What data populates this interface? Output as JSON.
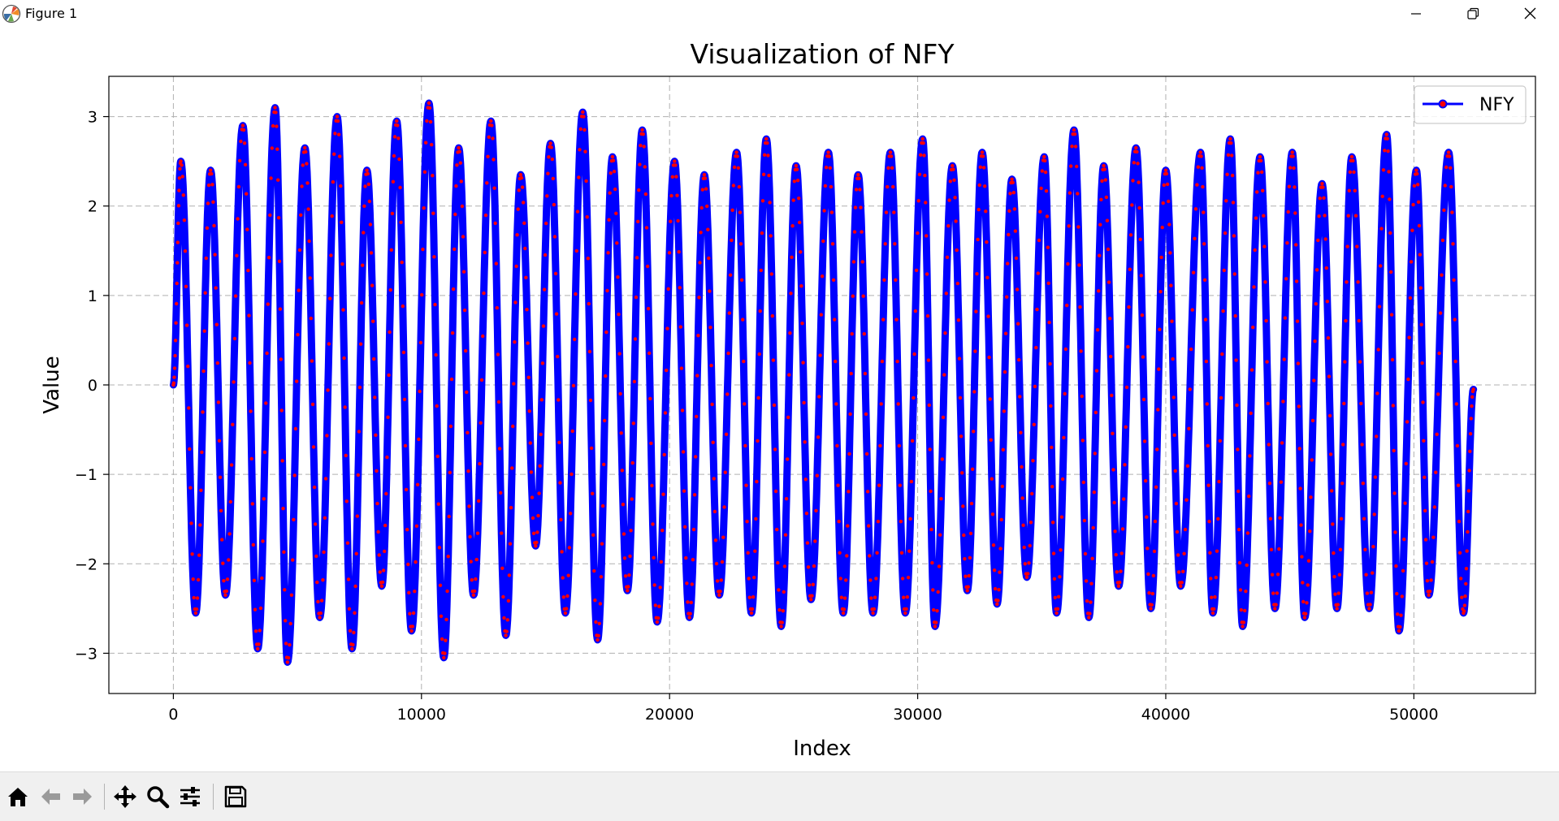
{
  "window": {
    "title": "Figure 1",
    "icon": "matplotlib-logo-icon",
    "controls": [
      "minimize-icon",
      "restore-icon",
      "close-icon"
    ]
  },
  "toolbar": {
    "buttons": [
      {
        "name": "home-button",
        "icon": "home-icon"
      },
      {
        "name": "back-button",
        "icon": "arrow-left-icon"
      },
      {
        "name": "forward-button",
        "icon": "arrow-right-icon"
      },
      {
        "name": "pan-button",
        "icon": "move-icon"
      },
      {
        "name": "zoom-button",
        "icon": "magnifier-icon"
      },
      {
        "name": "configure-subplots-button",
        "icon": "sliders-icon"
      },
      {
        "name": "save-button",
        "icon": "floppy-disk-icon"
      }
    ]
  },
  "chart_data": {
    "type": "line",
    "title": "Visualization of NFY",
    "xlabel": "Index",
    "ylabel": "Value",
    "xlim": [
      -2600,
      54900
    ],
    "ylim": [
      -3.45,
      3.45
    ],
    "xticks": [
      0,
      10000,
      20000,
      30000,
      40000,
      50000
    ],
    "yticks": [
      -3,
      -2,
      -1,
      0,
      1,
      2,
      3
    ],
    "grid": true,
    "legend_position": "top-right",
    "series": [
      {
        "name": "NFY",
        "line_color": "#0000ff",
        "marker_color": "#ff0000",
        "marker": "circle",
        "n_points": 52400,
        "x_range": [
          0,
          52400
        ],
        "peaks": [
          [
            300,
            2.5
          ],
          [
            1500,
            2.4
          ],
          [
            2800,
            2.9
          ],
          [
            4100,
            3.1
          ],
          [
            5300,
            2.65
          ],
          [
            6600,
            3.0
          ],
          [
            7800,
            2.4
          ],
          [
            9000,
            2.95
          ],
          [
            10300,
            3.15
          ],
          [
            11500,
            2.65
          ],
          [
            12800,
            2.95
          ],
          [
            14000,
            2.35
          ],
          [
            15200,
            2.7
          ],
          [
            16500,
            3.05
          ],
          [
            17700,
            2.55
          ],
          [
            18900,
            2.85
          ],
          [
            20200,
            2.5
          ],
          [
            21400,
            2.35
          ],
          [
            22700,
            2.6
          ],
          [
            23900,
            2.75
          ],
          [
            25100,
            2.45
          ],
          [
            26400,
            2.6
          ],
          [
            27600,
            2.35
          ],
          [
            28900,
            2.6
          ],
          [
            30200,
            2.75
          ],
          [
            31400,
            2.45
          ],
          [
            32600,
            2.6
          ],
          [
            33800,
            2.3
          ],
          [
            35100,
            2.55
          ],
          [
            36300,
            2.85
          ],
          [
            37500,
            2.45
          ],
          [
            38800,
            2.65
          ],
          [
            40000,
            2.4
          ],
          [
            41400,
            2.6
          ],
          [
            42600,
            2.75
          ],
          [
            43800,
            2.55
          ],
          [
            45100,
            2.6
          ],
          [
            46300,
            2.25
          ],
          [
            47500,
            2.55
          ],
          [
            48900,
            2.8
          ],
          [
            50100,
            2.4
          ],
          [
            51400,
            2.6
          ]
        ],
        "troughs": [
          [
            900,
            -2.55
          ],
          [
            2100,
            -2.35
          ],
          [
            3400,
            -2.95
          ],
          [
            4600,
            -3.1
          ],
          [
            5900,
            -2.6
          ],
          [
            7200,
            -2.95
          ],
          [
            8400,
            -2.25
          ],
          [
            9600,
            -2.75
          ],
          [
            10900,
            -3.05
          ],
          [
            12100,
            -2.35
          ],
          [
            13400,
            -2.8
          ],
          [
            14600,
            -1.8
          ],
          [
            15800,
            -2.55
          ],
          [
            17100,
            -2.85
          ],
          [
            18300,
            -2.3
          ],
          [
            19500,
            -2.65
          ],
          [
            20800,
            -2.6
          ],
          [
            22000,
            -2.35
          ],
          [
            23300,
            -2.55
          ],
          [
            24500,
            -2.7
          ],
          [
            25700,
            -2.4
          ],
          [
            27000,
            -2.55
          ],
          [
            28200,
            -2.55
          ],
          [
            29500,
            -2.55
          ],
          [
            30700,
            -2.7
          ],
          [
            32000,
            -2.3
          ],
          [
            33200,
            -2.45
          ],
          [
            34400,
            -2.15
          ],
          [
            35600,
            -2.55
          ],
          [
            36900,
            -2.6
          ],
          [
            38100,
            -2.25
          ],
          [
            39400,
            -2.5
          ],
          [
            40600,
            -2.25
          ],
          [
            41900,
            -2.55
          ],
          [
            43100,
            -2.7
          ],
          [
            44400,
            -2.5
          ],
          [
            45600,
            -2.6
          ],
          [
            46900,
            -2.5
          ],
          [
            48200,
            -2.5
          ],
          [
            49400,
            -2.75
          ],
          [
            50600,
            -2.35
          ],
          [
            52000,
            -2.55
          ]
        ],
        "end_value": -0.05
      }
    ]
  }
}
